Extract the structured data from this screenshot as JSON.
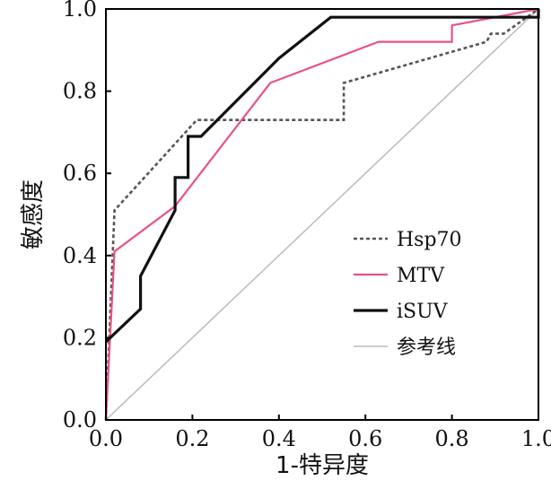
{
  "chart_data": {
    "type": "line",
    "xlabel": "1-特异度",
    "ylabel": "敏感度",
    "xlim": [
      0,
      1
    ],
    "ylim": [
      0,
      1
    ],
    "x_ticks": [
      "0.0",
      "0.2",
      "0.4",
      "0.6",
      "0.8",
      "1.0"
    ],
    "y_ticks": [
      "0.0",
      "0.2",
      "0.4",
      "0.6",
      "0.8",
      "1.0"
    ],
    "grid": false,
    "legend_position": "bottom-right",
    "series": [
      {
        "name": "Hsp70",
        "color": "#555555",
        "style": "dotted",
        "points": [
          [
            0,
            0
          ],
          [
            0.02,
            0.51
          ],
          [
            0.21,
            0.73
          ],
          [
            0.55,
            0.73
          ],
          [
            0.55,
            0.82
          ],
          [
            0.88,
            0.92
          ],
          [
            0.89,
            0.94
          ],
          [
            0.92,
            0.94
          ],
          [
            1,
            1
          ]
        ]
      },
      {
        "name": "MTV",
        "color": "#e8547e",
        "style": "solid",
        "points": [
          [
            0,
            0
          ],
          [
            0.02,
            0.41
          ],
          [
            0.16,
            0.52
          ],
          [
            0.38,
            0.82
          ],
          [
            0.63,
            0.92
          ],
          [
            0.8,
            0.92
          ],
          [
            0.8,
            0.96
          ],
          [
            1,
            1
          ]
        ]
      },
      {
        "name": "iSUV",
        "color": "#111111",
        "style": "solid",
        "points": [
          [
            0,
            0.19
          ],
          [
            0.08,
            0.27
          ],
          [
            0.08,
            0.35
          ],
          [
            0.16,
            0.51
          ],
          [
            0.16,
            0.59
          ],
          [
            0.19,
            0.59
          ],
          [
            0.19,
            0.69
          ],
          [
            0.22,
            0.69
          ],
          [
            0.4,
            0.88
          ],
          [
            0.52,
            0.98
          ],
          [
            1,
            0.98
          ],
          [
            1,
            1
          ]
        ]
      },
      {
        "name": "参考线",
        "color": "#bbbbbb",
        "style": "solid",
        "points": [
          [
            0,
            0
          ],
          [
            1,
            1
          ]
        ]
      }
    ]
  }
}
